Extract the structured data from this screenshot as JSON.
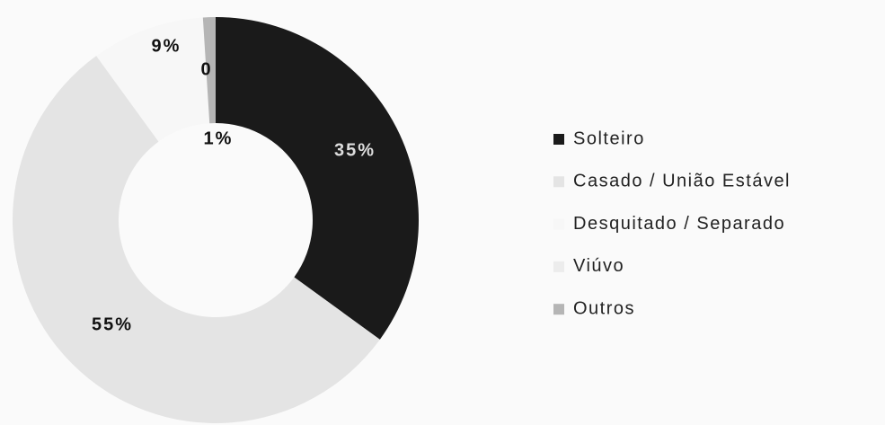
{
  "chart_data": {
    "type": "donut",
    "categories": [
      "Solteiro",
      "Casado / União Estável",
      "Desquitado / Separado",
      "Viúvo",
      "Outros"
    ],
    "values": [
      35,
      55,
      9,
      0,
      1
    ],
    "value_labels": [
      "35%",
      "55%",
      "9%",
      "0",
      "1%"
    ],
    "colors": [
      "#1a1a1a",
      "#e4e4e4",
      "#f7f7f7",
      "#ececec",
      "#b5b5b5"
    ],
    "legend": "right"
  }
}
